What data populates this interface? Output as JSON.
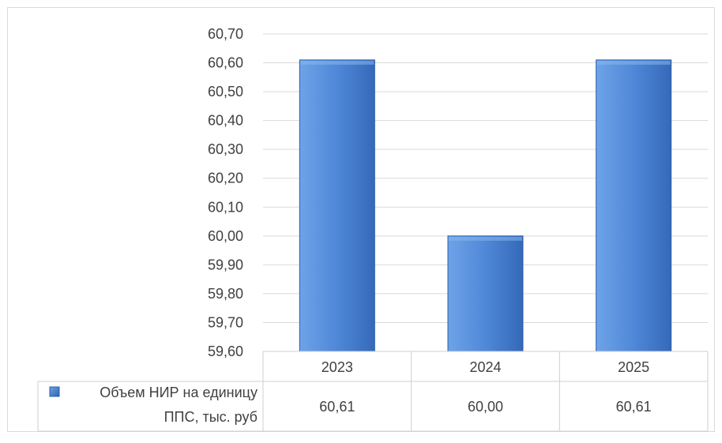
{
  "chart_data": {
    "type": "bar",
    "categories": [
      "2023",
      "2024",
      "2025"
    ],
    "series": [
      {
        "name": "Объем НИР на единицу ППС, тыс. руб",
        "values": [
          60.61,
          60.0,
          60.61
        ]
      }
    ],
    "ylim": [
      59.6,
      60.7
    ],
    "y_ticks": [
      "59,60",
      "59,70",
      "59,80",
      "59,90",
      "60,00",
      "60,10",
      "60,20",
      "60,30",
      "60,40",
      "60,50",
      "60,60",
      "60,70"
    ],
    "legend_label_lines": [
      "Объем НИР на единицу",
      "ППС, тыс. руб"
    ],
    "table_values": [
      "60,61",
      "60,00",
      "60,61"
    ],
    "grid": true,
    "legend": "data-table",
    "colors": {
      "bar_light": "#5b94e0",
      "bar_dark": "#2e63b0",
      "grid": "#d9d9d9",
      "border": "#cfcfcf"
    }
  }
}
